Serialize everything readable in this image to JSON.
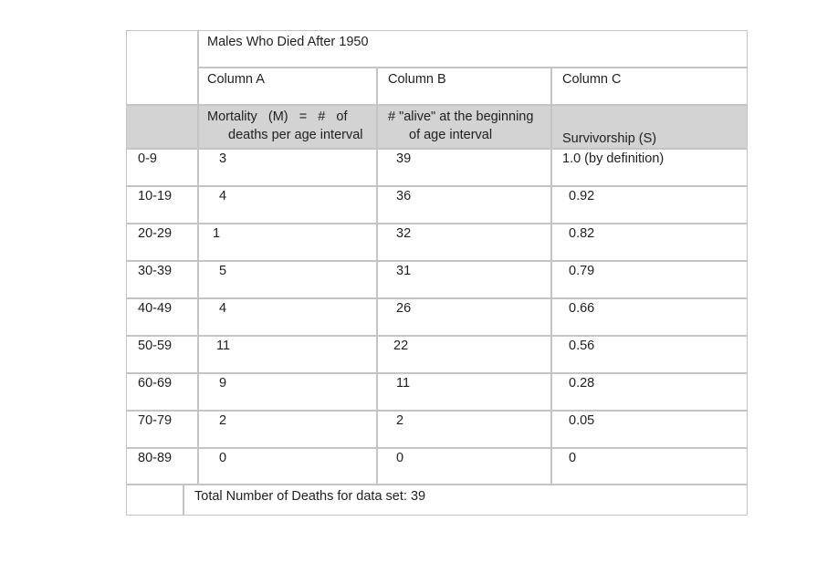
{
  "title": "Males Who Died After 1950",
  "columns": {
    "a": "Column A",
    "b": "Column B",
    "c": "Column C"
  },
  "descriptions": {
    "a_line1": "Mortality   (M)   =   #   of",
    "a_line2": "deaths per age interval",
    "b_line1": "# \"alive\" at the beginning",
    "b_line2": "of age interval",
    "c": "Survivorship (S)"
  },
  "rows": [
    {
      "age": "0-9",
      "a": "3",
      "b": "39",
      "c": "1.0 (by definition)"
    },
    {
      "age": "10-19",
      "a": "4",
      "b": "36",
      "c": "0.92"
    },
    {
      "age": "20-29",
      "a": "1",
      "b": "32",
      "c": "0.82"
    },
    {
      "age": "30-39",
      "a": "5",
      "b": "31",
      "c": "0.79"
    },
    {
      "age": "40-49",
      "a": "4",
      "b": "26",
      "c": "0.66"
    },
    {
      "age": "50-59",
      "a": "11",
      "b": "22",
      "c": "0.56"
    },
    {
      "age": "60-69",
      "a": "9",
      "b": "11",
      "c": "0.28"
    },
    {
      "age": "70-79",
      "a": "2",
      "b": "2",
      "c": "0.05"
    },
    {
      "age": "80-89",
      "a": "0",
      "b": "0",
      "c": "0"
    }
  ],
  "footer": "Total Number of Deaths for data set: 39",
  "colors": {
    "border": "#c4c4c4",
    "header_shade": "#d3d3d3"
  }
}
